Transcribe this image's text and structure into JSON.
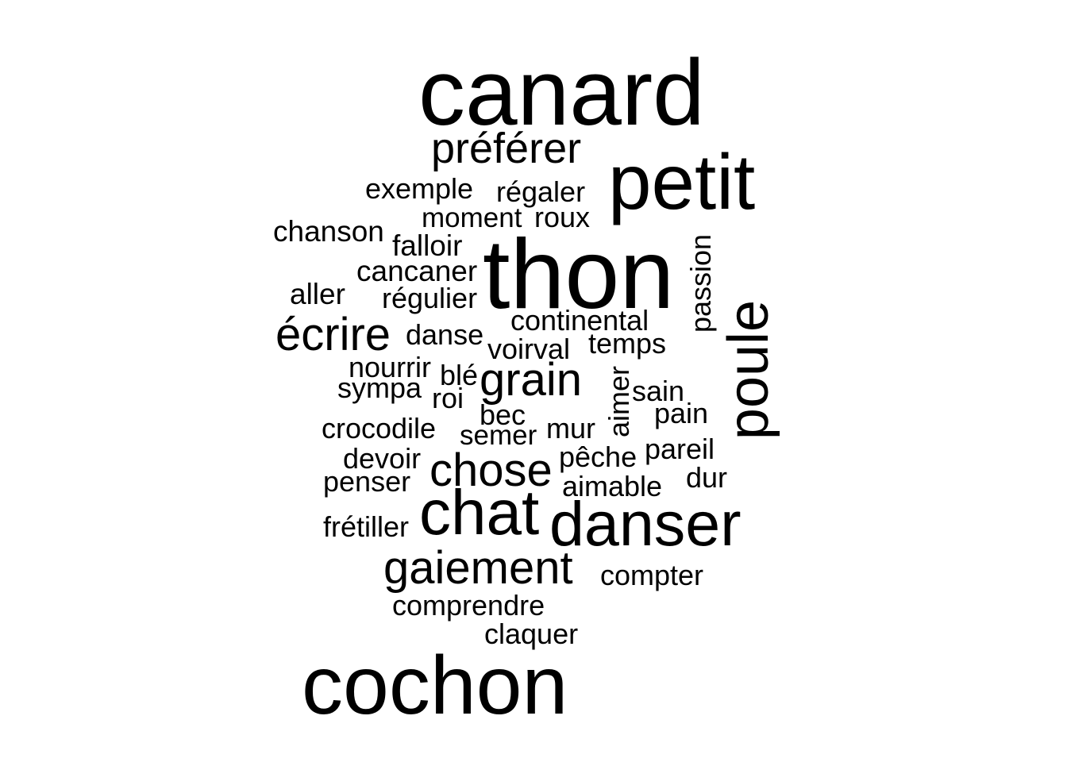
{
  "word_cloud": {
    "words": [
      "canard",
      "préférer",
      "petit",
      "exemple",
      "régaler",
      "moment",
      "roux",
      "chanson",
      "falloir",
      "thon",
      "passion",
      "cancaner",
      "aller",
      "régulier",
      "poule",
      "continental",
      "écrire",
      "danse",
      "temps",
      "voirval",
      "nourrir",
      "blé",
      "grain",
      "sympa",
      "roi",
      "aimer",
      "sain",
      "bec",
      "pain",
      "crocodile",
      "mur",
      "semer",
      "pareil",
      "devoir",
      "pêche",
      "chose",
      "penser",
      "dur",
      "aimable",
      "chat",
      "danser",
      "frétiller",
      "gaiement",
      "compter",
      "comprendre",
      "claquer",
      "cochon"
    ],
    "color": "#000000"
  }
}
